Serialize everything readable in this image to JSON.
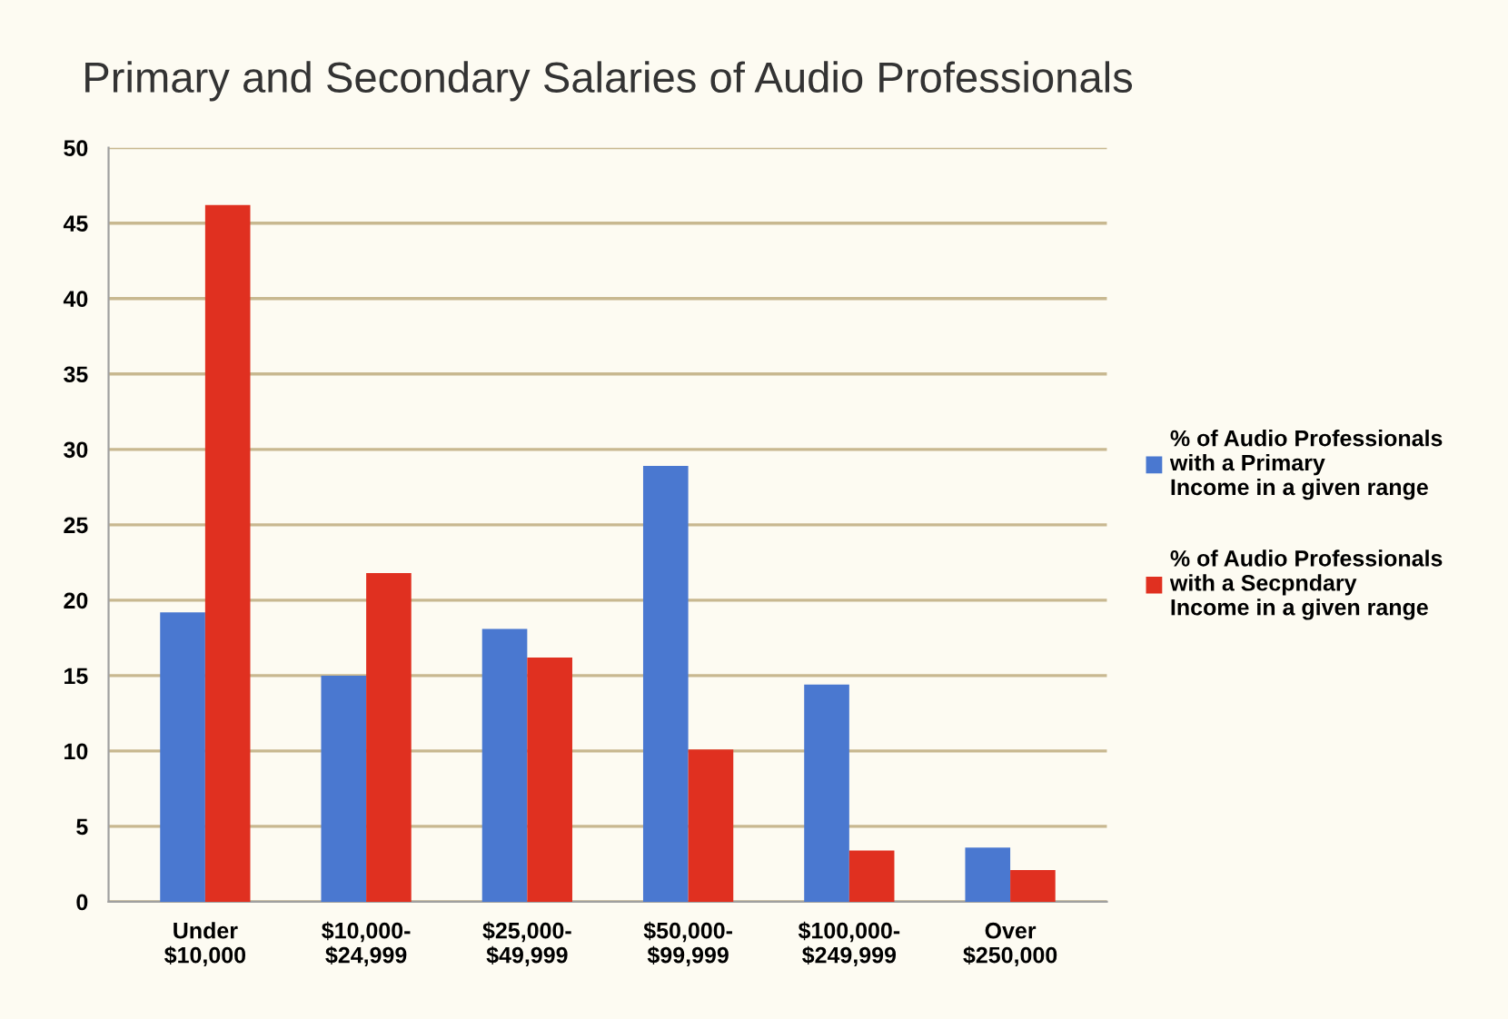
{
  "chart_data": {
    "type": "bar",
    "title": "Primary and Secondary Salaries of Audio Professionals",
    "categories": [
      "Under\n$10,000",
      "$10,000-\n$24,999",
      "$25,000-\n$49,999",
      "$50,000-\n$99,999",
      "$100,000-\n$249,999",
      "Over\n$250,000"
    ],
    "series": [
      {
        "name": "% of Audio Professionals\nwith a Primary\nIncome in a given range",
        "color": "#4a78d0",
        "values": [
          19.2,
          15.0,
          18.1,
          28.9,
          14.4,
          3.6
        ]
      },
      {
        "name": "% of Audio Professionals\nwith a Secpndary\nIncome in a given range",
        "color": "#e03020",
        "values": [
          46.2,
          21.8,
          16.2,
          10.1,
          3.4,
          2.1
        ]
      }
    ],
    "ylim": [
      0,
      50
    ],
    "yticks": [
      0,
      5,
      10,
      15,
      20,
      25,
      30,
      35,
      40,
      45,
      50
    ],
    "grid": "y",
    "legend": "right"
  }
}
